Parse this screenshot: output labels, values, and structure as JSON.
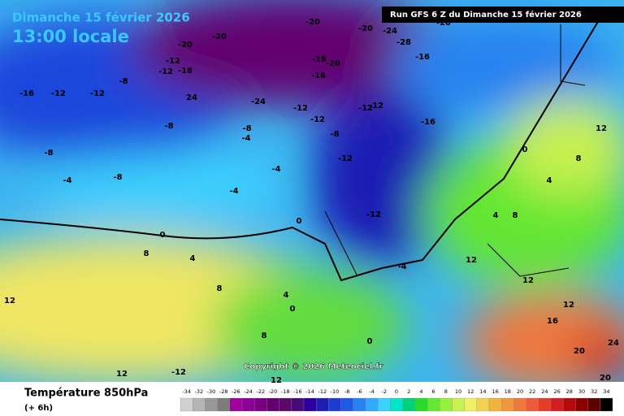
{
  "header": {
    "date": "Dimanche 15 février 2026",
    "time": "13:00 locale",
    "run": "Run GFS 6 Z du Dimanche 15 février 2026"
  },
  "copyright": "Copyright © 2026 Meteociel.fr",
  "footer": {
    "title": "Température 850hPa",
    "lead": "(+ 6h)"
  },
  "legend": {
    "ticks": [
      -34,
      -32,
      -30,
      -28,
      -26,
      -24,
      -22,
      -20,
      -18,
      -16,
      -14,
      -12,
      -10,
      -8,
      -6,
      -4,
      -2,
      0,
      2,
      4,
      6,
      8,
      10,
      12,
      14,
      16,
      18,
      20,
      22,
      24,
      26,
      28,
      30,
      32,
      34
    ],
    "colors": [
      "#d0d0d0",
      "#b4b4b4",
      "#989898",
      "#7c7c7c",
      "#a000a0",
      "#8c0096",
      "#780080",
      "#64006e",
      "#5a0a64",
      "#460a7a",
      "#2800a0",
      "#1e1eb4",
      "#1e3cd2",
      "#1e5ae6",
      "#2882f0",
      "#32aaff",
      "#3cd2ff",
      "#00e6c8",
      "#00d278",
      "#28dc28",
      "#64e632",
      "#96f03c",
      "#c8f050",
      "#f0f064",
      "#f0d250",
      "#f0b43c",
      "#f0963c",
      "#f0783c",
      "#f05a3c",
      "#e63c28",
      "#d21e1e",
      "#b40a0a",
      "#8c0000",
      "#5a0000",
      "#000000"
    ]
  },
  "map_labels": [
    "-20",
    "-20",
    "-20",
    "-20",
    "-24",
    "-28",
    "-16",
    "-20",
    "-16",
    "-12",
    "-12",
    "-8",
    "-12",
    "-12",
    "-16",
    "24",
    "-24",
    "-12",
    "-16",
    "-20",
    "-16",
    "-12",
    "-12",
    "-12",
    "-16",
    "-8",
    "-8",
    "-4",
    "-8",
    "-8",
    "-4",
    "-4",
    "-4",
    "-8",
    "-12",
    "-12",
    "0",
    "0",
    "8",
    "4",
    "8",
    "12",
    "0",
    "4",
    "0",
    "12",
    "8",
    "4",
    "8",
    "4",
    "12",
    "12",
    "12",
    "16",
    "24",
    "20",
    "20",
    "12",
    "12",
    "-12",
    "-4",
    "0",
    "8"
  ]
}
